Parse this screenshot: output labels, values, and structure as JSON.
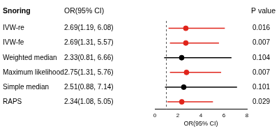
{
  "chart_data": {
    "type": "forest",
    "title": "Snoring",
    "value_header": "OR(95% CI)",
    "p_header": "P value",
    "x_label": "OR(95% CI)",
    "categories": [
      "IVW-re",
      "IVW-fe",
      "Weighted median",
      "Maximum likelihood",
      "Simple median",
      "RAPS"
    ],
    "values": [
      2.69,
      2.69,
      2.33,
      2.75,
      2.51,
      2.34
    ],
    "value_labels": [
      "2.69(1.19, 6.08)",
      "2.69(1.31, 5.57)",
      "2.33(0.81, 6.66)",
      "2.75(1.31, 5.76)",
      "2.51(0.88, 7.14)",
      "2.34(1.08, 5.05)"
    ],
    "ci_lower": [
      1.19,
      1.31,
      0.81,
      1.31,
      0.88,
      1.08
    ],
    "ci_upper": [
      6.08,
      5.57,
      6.66,
      5.76,
      7.14,
      5.05
    ],
    "p_values": [
      0.016,
      0.007,
      0.104,
      0.007,
      0.101,
      0.029
    ],
    "colors": [
      "#e0241b",
      "#e0241b",
      "#000000",
      "#e0241b",
      "#000000",
      "#e0241b"
    ],
    "xlim": [
      0,
      8
    ],
    "xticks": [
      0,
      2,
      4,
      6,
      8
    ],
    "reference_value": 1,
    "grid": false,
    "marker": "circle"
  }
}
